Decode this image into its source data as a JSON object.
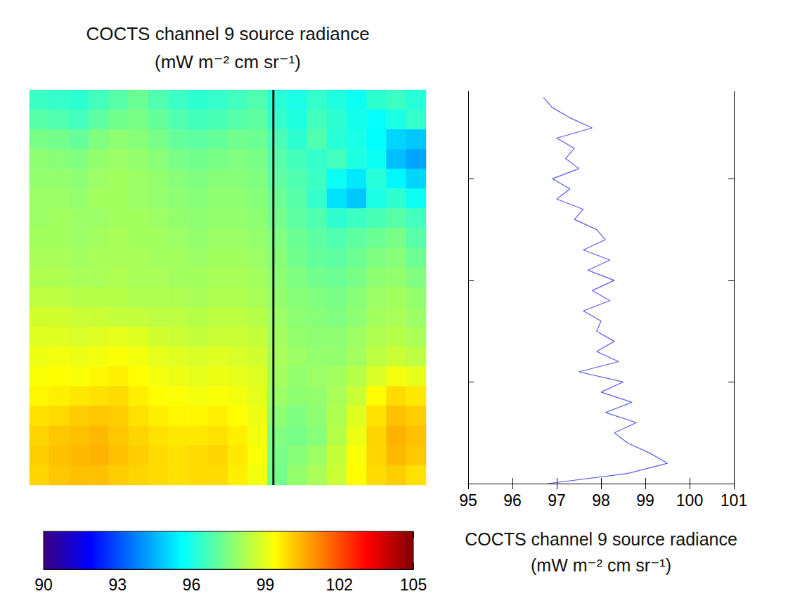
{
  "chart_data": [
    {
      "type": "heatmap",
      "title": "COCTS channel 9 source radiance\n(mW m⁻² cm sr⁻¹)",
      "tick_labels": false,
      "profile_column": 12.3,
      "colorbar_lim": [
        90,
        105
      ],
      "colorbar_ticks": [
        90,
        93,
        96,
        99,
        102,
        105
      ],
      "cells": [
        [
          96.5,
          96.4,
          96.3,
          96.6,
          96.9,
          97.2,
          96.8,
          96.5,
          96.3,
          96.4,
          96.6,
          96.8,
          96.2,
          96.0,
          96.4,
          96.1,
          95.8,
          96.3,
          96.5,
          96.2
        ],
        [
          96.9,
          96.8,
          96.6,
          97.0,
          97.3,
          97.4,
          97.1,
          96.8,
          96.6,
          96.7,
          96.9,
          97.0,
          96.4,
          96.1,
          96.6,
          96.3,
          95.9,
          95.7,
          96.0,
          96.4
        ],
        [
          97.4,
          97.3,
          97.1,
          97.5,
          97.7,
          97.6,
          97.4,
          97.1,
          97.0,
          97.1,
          97.3,
          97.2,
          96.7,
          96.3,
          96.8,
          96.2,
          96.0,
          95.6,
          95.0,
          94.8
        ],
        [
          97.7,
          97.6,
          97.5,
          97.8,
          97.9,
          97.8,
          97.6,
          97.4,
          97.3,
          97.4,
          97.5,
          97.4,
          96.9,
          96.6,
          96.4,
          96.6,
          96.1,
          95.8,
          94.7,
          94.3
        ],
        [
          97.8,
          97.8,
          97.7,
          97.9,
          98.0,
          97.9,
          97.8,
          97.6,
          97.5,
          97.6,
          97.6,
          97.5,
          97.0,
          96.8,
          96.5,
          95.8,
          95.3,
          96.2,
          95.5,
          95.0
        ],
        [
          97.9,
          97.9,
          97.8,
          98.0,
          98.0,
          97.9,
          97.8,
          97.7,
          97.6,
          97.7,
          97.7,
          97.6,
          97.2,
          96.9,
          96.4,
          95.2,
          94.8,
          96.0,
          96.3,
          95.8
        ],
        [
          97.9,
          98.0,
          97.9,
          97.9,
          98.0,
          98.0,
          97.9,
          97.8,
          97.7,
          97.8,
          97.8,
          97.7,
          97.3,
          97.0,
          96.8,
          96.3,
          96.5,
          96.7,
          96.9,
          96.6
        ],
        [
          98.0,
          98.0,
          97.9,
          98.0,
          98.1,
          98.0,
          98.0,
          97.9,
          97.8,
          97.9,
          97.9,
          97.8,
          97.5,
          97.2,
          97.0,
          96.8,
          97.0,
          97.2,
          97.4,
          96.9
        ],
        [
          98.1,
          98.1,
          98.0,
          98.1,
          98.1,
          98.1,
          98.0,
          98.0,
          97.9,
          98.0,
          98.0,
          97.9,
          97.6,
          97.3,
          97.1,
          97.0,
          97.2,
          97.5,
          97.6,
          97.2
        ],
        [
          98.2,
          98.2,
          98.1,
          98.1,
          98.2,
          98.1,
          98.1,
          98.0,
          98.0,
          98.1,
          98.1,
          98.0,
          97.7,
          97.5,
          97.3,
          97.2,
          97.4,
          97.7,
          97.8,
          97.5
        ],
        [
          98.4,
          98.4,
          98.3,
          98.3,
          98.3,
          98.2,
          98.2,
          98.2,
          98.1,
          98.2,
          98.2,
          98.1,
          97.8,
          97.6,
          97.5,
          97.4,
          97.6,
          97.9,
          98.0,
          97.8
        ],
        [
          98.7,
          98.7,
          98.6,
          98.6,
          98.5,
          98.5,
          98.4,
          98.4,
          98.3,
          98.4,
          98.4,
          98.3,
          97.9,
          97.7,
          97.6,
          97.5,
          97.7,
          98.0,
          98.1,
          97.9
        ],
        [
          98.9,
          98.9,
          98.8,
          98.9,
          99.0,
          98.9,
          98.7,
          98.6,
          98.5,
          98.6,
          98.6,
          98.5,
          98.0,
          97.8,
          97.7,
          97.7,
          97.9,
          98.2,
          98.3,
          98.1
        ],
        [
          99.1,
          99.2,
          99.1,
          99.2,
          99.3,
          99.2,
          99.0,
          98.9,
          98.8,
          98.9,
          98.8,
          98.7,
          98.1,
          97.9,
          97.8,
          97.8,
          98.0,
          98.4,
          98.6,
          98.4
        ],
        [
          99.3,
          99.4,
          99.3,
          99.5,
          99.6,
          99.4,
          99.2,
          99.1,
          99.0,
          99.1,
          99.0,
          98.9,
          98.0,
          97.8,
          97.9,
          98.0,
          98.3,
          98.8,
          99.2,
          99.0
        ],
        [
          99.5,
          99.6,
          99.7,
          99.8,
          99.9,
          99.6,
          99.4,
          99.3,
          99.2,
          99.3,
          99.2,
          99.0,
          97.9,
          97.7,
          97.8,
          98.1,
          98.6,
          99.4,
          99.9,
          99.7
        ],
        [
          99.8,
          99.9,
          100.1,
          100.2,
          100.1,
          99.8,
          99.6,
          99.5,
          99.5,
          99.6,
          99.4,
          99.1,
          97.7,
          97.5,
          97.7,
          98.2,
          98.9,
          99.8,
          100.3,
          100.1
        ],
        [
          100.0,
          100.2,
          100.3,
          100.4,
          100.2,
          100.0,
          99.8,
          99.7,
          99.7,
          99.8,
          99.6,
          99.2,
          97.5,
          97.4,
          97.6,
          98.3,
          99.1,
          100.0,
          100.5,
          100.3
        ],
        [
          100.1,
          100.3,
          100.4,
          100.5,
          100.3,
          100.1,
          99.9,
          99.8,
          99.9,
          100.0,
          99.7,
          99.3,
          97.4,
          97.6,
          97.9,
          98.5,
          99.3,
          100.0,
          100.4,
          100.2
        ],
        [
          100.0,
          100.2,
          100.3,
          100.3,
          100.1,
          100.0,
          99.9,
          99.8,
          99.9,
          99.9,
          99.6,
          99.2,
          97.3,
          97.8,
          98.1,
          98.6,
          99.4,
          99.9,
          100.1,
          99.8
        ]
      ]
    },
    {
      "type": "line",
      "xlabel": "COCTS channel 9 source radiance\n(mW m⁻² cm sr⁻¹)",
      "tick_labels": "x",
      "color": "#5b5bf0",
      "xlim": [
        95,
        101
      ],
      "xticks": [
        95,
        96,
        97,
        98,
        99,
        100,
        101
      ],
      "ylim": [
        0,
        386
      ],
      "yticks": [
        0,
        100,
        200,
        300
      ],
      "y": [
        380,
        370,
        360,
        350,
        340,
        330,
        320,
        310,
        300,
        290,
        280,
        270,
        260,
        250,
        240,
        230,
        220,
        210,
        200,
        190,
        180,
        170,
        160,
        150,
        140,
        130,
        120,
        110,
        100,
        90,
        80,
        70,
        60,
        50,
        40,
        30,
        20,
        10,
        0
      ],
      "values": [
        96.7,
        96.9,
        97.3,
        97.8,
        97.0,
        97.4,
        97.2,
        97.5,
        96.9,
        97.3,
        97.0,
        97.6,
        97.4,
        97.9,
        98.1,
        97.6,
        98.2,
        97.7,
        98.3,
        97.8,
        98.2,
        97.6,
        98.0,
        97.9,
        98.3,
        97.9,
        98.4,
        97.5,
        98.5,
        98.0,
        98.7,
        98.1,
        98.8,
        98.3,
        98.6,
        99.1,
        99.5,
        98.6,
        96.8
      ]
    }
  ]
}
